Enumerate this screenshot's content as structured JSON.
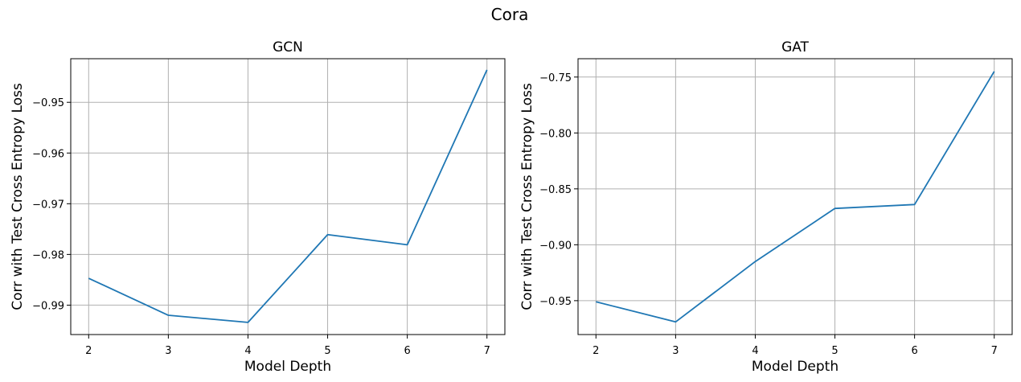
{
  "figure": {
    "suptitle": "Cora"
  },
  "chart_data": [
    {
      "type": "line",
      "title": "GCN",
      "xlabel": "Model Depth",
      "ylabel": "Corr with Test Cross Entropy Loss",
      "x": [
        2,
        3,
        4,
        5,
        6,
        7
      ],
      "series": [
        {
          "values": [
            -0.9847,
            -0.992,
            -0.9934,
            -0.9761,
            -0.9781,
            -0.9436
          ],
          "color": "#1f77b4"
        }
      ],
      "xticks": [
        "2",
        "3",
        "4",
        "5",
        "6",
        "7"
      ],
      "yticks": [
        -0.99,
        -0.98,
        -0.97,
        -0.96,
        -0.95
      ],
      "ytick_labels": [
        "−0.99",
        "−0.98",
        "−0.97",
        "−0.96",
        "−0.95"
      ],
      "xlim": [
        1.775,
        7.225
      ],
      "ylim": [
        -0.9958,
        -0.9414
      ],
      "grid": true
    },
    {
      "type": "line",
      "title": "GAT",
      "xlabel": "Model Depth",
      "ylabel": "Corr with Test Cross Entropy Loss",
      "x": [
        2,
        3,
        4,
        5,
        6,
        7
      ],
      "series": [
        {
          "values": [
            -0.951,
            -0.969,
            -0.915,
            -0.8675,
            -0.864,
            -0.745
          ],
          "color": "#1f77b4"
        }
      ],
      "xticks": [
        "2",
        "3",
        "4",
        "5",
        "6",
        "7"
      ],
      "yticks": [
        -0.95,
        -0.9,
        -0.85,
        -0.8,
        -0.75
      ],
      "ytick_labels": [
        "−0.95",
        "−0.90",
        "−0.85",
        "−0.80",
        "−0.75"
      ],
      "xlim": [
        1.775,
        7.225
      ],
      "ylim": [
        -0.9803,
        -0.7336
      ],
      "grid": true
    }
  ]
}
